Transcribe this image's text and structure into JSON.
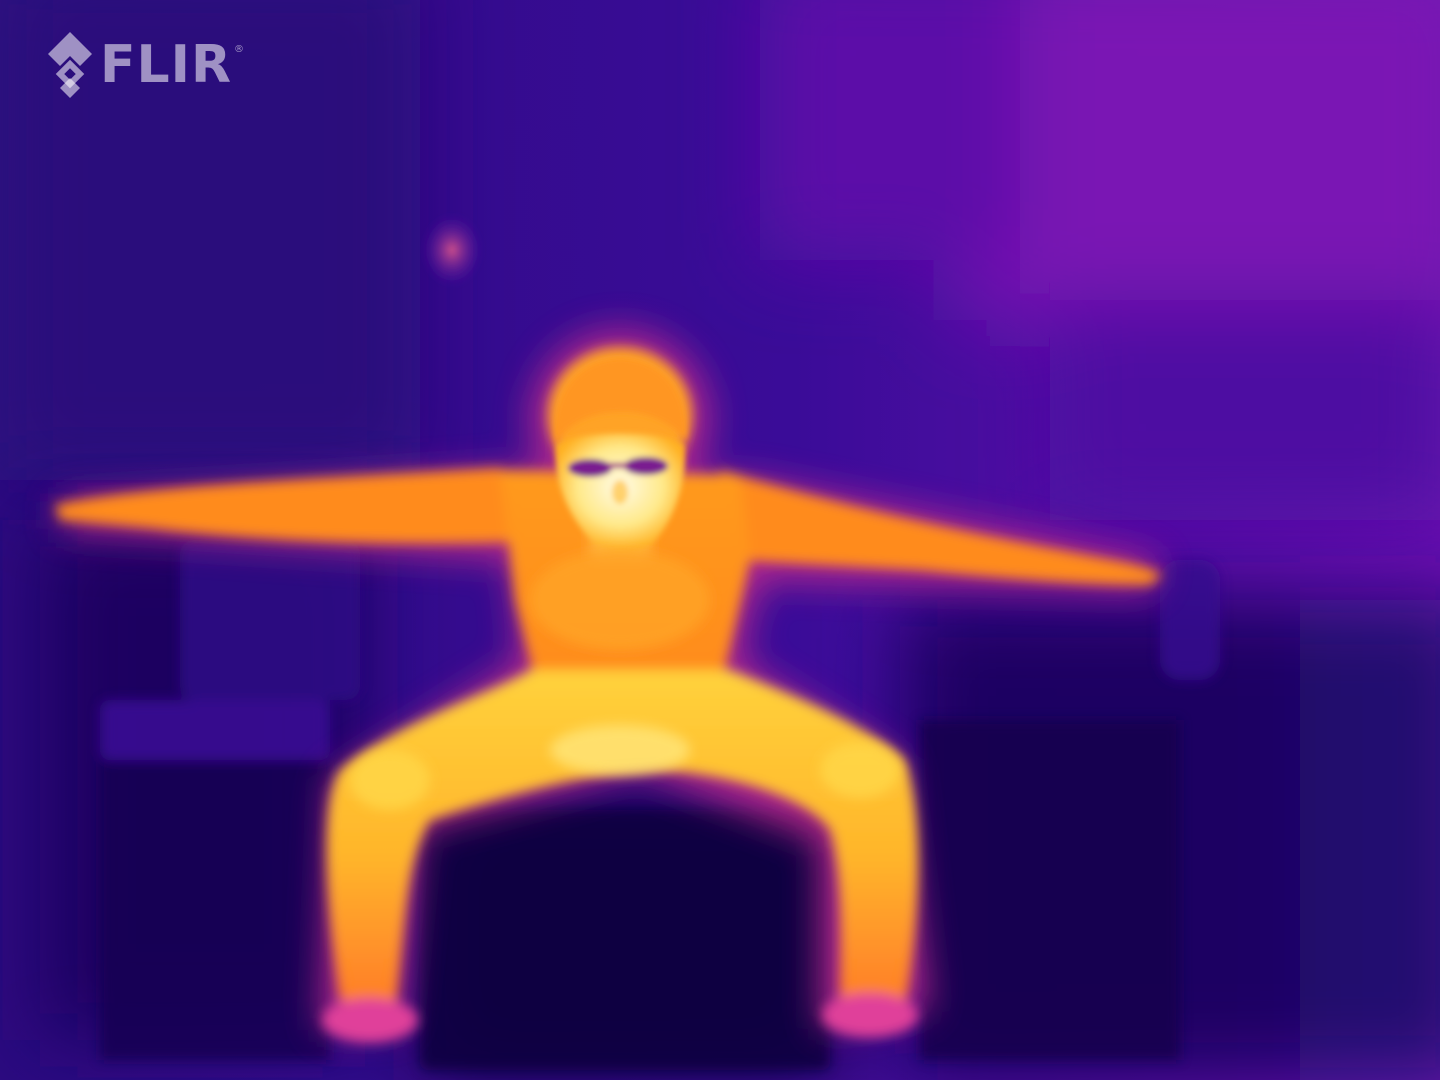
{
  "image": {
    "palette": "iron",
    "colors": {
      "background": "#2a0a78",
      "cold": "#1a0550",
      "mid_cold": "#5a14a8",
      "warm": "#c8328c",
      "hot": "#ff8c1e",
      "hotter": "#ffc832",
      "hottest": "#fffadc"
    }
  },
  "brand": {
    "logo_text": "FLIR",
    "registered_mark": "®",
    "logo_icon": "flir-diamond-icon"
  }
}
